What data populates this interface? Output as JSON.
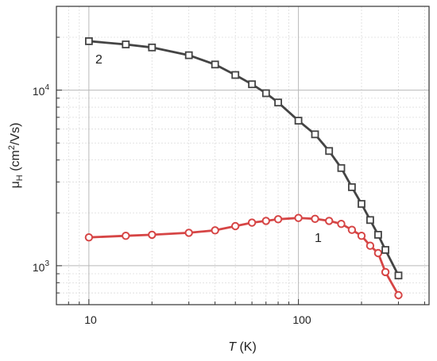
{
  "chart_data": {
    "type": "line",
    "title": "",
    "xscale": "log",
    "yscale": "log",
    "xlim": [
      7,
      420
    ],
    "ylim": [
      600,
      30000
    ],
    "grid": true,
    "legend": "none",
    "xticks": [
      {
        "value": 10,
        "label": "10"
      },
      {
        "value": 100,
        "label": "100"
      }
    ],
    "yticks": [
      {
        "value": 1000,
        "base": "10",
        "exp": "3"
      },
      {
        "value": 10000,
        "base": "10",
        "exp": "4"
      }
    ],
    "xlabel": {
      "italic": "T",
      "rest": " (K)"
    },
    "ylabel": {
      "main": "μ",
      "sub": "H",
      "unit_pre": " (cm",
      "unit_sup": "2",
      "unit_post": "/Vs)"
    },
    "series": [
      {
        "label": "1",
        "marker": "circle",
        "color": "#d64545",
        "x": [
          10,
          15,
          20,
          30,
          40,
          50,
          60,
          70,
          80,
          100,
          120,
          140,
          160,
          180,
          200,
          220,
          240,
          260,
          300
        ],
        "y": [
          1450,
          1480,
          1500,
          1540,
          1590,
          1680,
          1760,
          1800,
          1840,
          1870,
          1850,
          1800,
          1730,
          1600,
          1480,
          1300,
          1180,
          920,
          680
        ]
      },
      {
        "label": "2",
        "marker": "square",
        "color": "#444444",
        "x": [
          10,
          15,
          20,
          30,
          40,
          50,
          60,
          70,
          80,
          100,
          120,
          140,
          160,
          180,
          200,
          220,
          240,
          260,
          300
        ],
        "y": [
          19000,
          18200,
          17500,
          15800,
          14000,
          12200,
          10800,
          9600,
          8500,
          6700,
          5600,
          4500,
          3600,
          2800,
          2250,
          1820,
          1500,
          1230,
          880
        ]
      }
    ]
  }
}
